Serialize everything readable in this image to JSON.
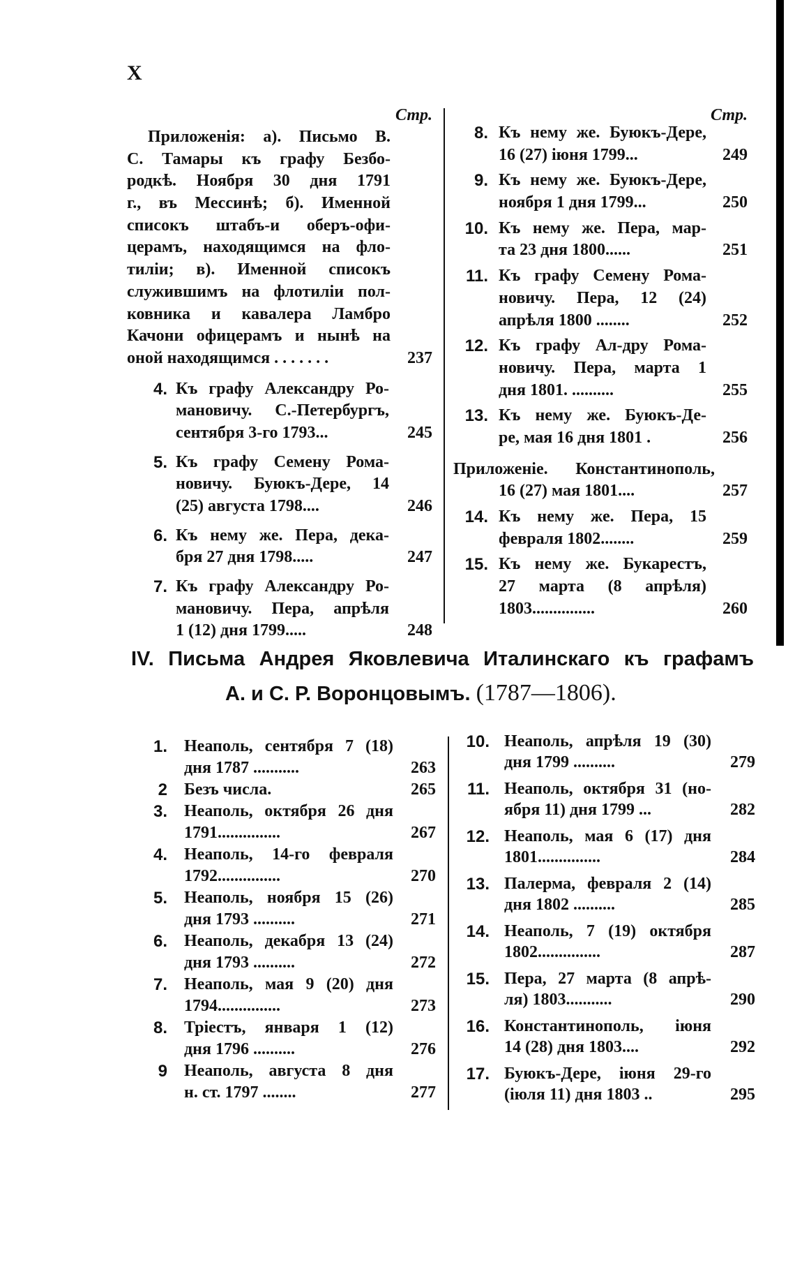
{
  "page_number": "X",
  "page_label": "Стр.",
  "top_left": {
    "appendix": {
      "lines": [
        "Приложенія: а). Письмо В.",
        "С. Тамары къ графу Безбо-",
        "родкѣ. Ноября 30 дня 1791",
        "г., въ Мессинѣ; б). Именной",
        "списокъ штабъ-и оберъ-офи-",
        "церамъ, находящимся на фло-",
        "тиліи; в). Именной списокъ",
        "служившимъ на флотиліи пол-",
        "ковника и кавалера Ламбро",
        "Качони офицерамъ и нынѣ на",
        "оной находящимся . . . . . . ."
      ],
      "page": "237"
    },
    "entries": [
      {
        "num": "4.",
        "lines": [
          "Къ графу Александру Ро-",
          "мановичу. С.-Петербургъ,",
          "сентября 3-го 1793..."
        ],
        "page": "245"
      },
      {
        "num": "5.",
        "lines": [
          "Къ графу Семену Рома-",
          "новичу. Буюкъ-Дере, 14",
          "(25) августа 1798...."
        ],
        "page": "246"
      },
      {
        "num": "6.",
        "lines": [
          "Къ нему же. Пера, дека-",
          "бря 27 дня 1798....."
        ],
        "page": "247"
      },
      {
        "num": "7.",
        "lines": [
          "Къ графу Александру Ро-",
          "мановичу. Пера, апрѣля",
          "1 (12) дня 1799....."
        ],
        "page": "248"
      }
    ]
  },
  "top_right": {
    "entries": [
      {
        "num": "8.",
        "lines": [
          "Къ нему же. Буюкъ-Дере,",
          "16 (27) іюня 1799..."
        ],
        "page": "249"
      },
      {
        "num": "9.",
        "lines": [
          "Къ нему же. Буюкъ-Дере,",
          "ноября 1 дня 1799..."
        ],
        "page": "250"
      },
      {
        "num": "10.",
        "lines": [
          "Къ нему же. Пера, мар-",
          "та 23 дня 1800......"
        ],
        "page": "251"
      },
      {
        "num": "11.",
        "lines": [
          "Къ графу Семену Рома-",
          "новичу. Пера, 12 (24)",
          "апрѣля 1800 ........"
        ],
        "page": "252"
      },
      {
        "num": "12.",
        "lines": [
          "Къ графу Ал-дру Рома-",
          "новичу. Пера, марта 1",
          "дня 1801. .........."
        ],
        "page": "255"
      },
      {
        "num": "13.",
        "lines": [
          "Къ нему же. Буюкъ-Де-",
          "ре, мая 16 дня 1801 ."
        ],
        "page": "256"
      },
      {
        "num": "",
        "appendix": true,
        "lines": [
          "Приложеніе. Константинополь,",
          "16 (27) мая 1801...."
        ],
        "page": "257"
      },
      {
        "num": "14.",
        "lines": [
          "Къ нему же. Пера, 15",
          "февраля 1802........"
        ],
        "page": "259"
      },
      {
        "num": "15.",
        "lines": [
          "Къ нему же. Букарестъ,",
          "27 марта (8 апрѣля)",
          "1803..............."
        ],
        "page": "260"
      }
    ]
  },
  "section_heading": {
    "line1": "IV. Письма Андрея Яковлевича Италинскаго къ графамъ",
    "line2": "А. и С. Р. Воронцовымъ.",
    "years": "(1787—1806)."
  },
  "bottom_left": {
    "entries": [
      {
        "num": "1.",
        "lines": [
          "Неаполь, сентября 7 (18)",
          "дня 1787 ..........."
        ],
        "page": "263"
      },
      {
        "num": "2",
        "lines": [
          "Безъ числа."
        ],
        "page": "265"
      },
      {
        "num": "3.",
        "lines": [
          "Неаполь, октября 26 дня",
          "1791..............."
        ],
        "page": "267"
      },
      {
        "num": "4.",
        "lines": [
          "Неаполь, 14-го февраля",
          "1792..............."
        ],
        "page": "270"
      },
      {
        "num": "5.",
        "lines": [
          "Неаполь, ноября 15 (26)",
          "дня 1793 .........."
        ],
        "page": "271"
      },
      {
        "num": "6.",
        "lines": [
          "Неаполь, декабря 13 (24)",
          "дня 1793 .........."
        ],
        "page": "272"
      },
      {
        "num": "7.",
        "lines": [
          "Неаполь, мая 9 (20) дня",
          "1794..............."
        ],
        "page": "273"
      },
      {
        "num": "8.",
        "lines": [
          "Тріестъ, января 1 (12)",
          "дня 1796 .........."
        ],
        "page": "276"
      },
      {
        "num": "9",
        "lines": [
          "Неаполь, августа 8 дня",
          "н. ст. 1797 ........"
        ],
        "page": "277"
      }
    ]
  },
  "bottom_right": {
    "entries": [
      {
        "num": "10.",
        "lines": [
          "Неаполь, апрѣля 19 (30)",
          "дня 1799 .........."
        ],
        "page": "279"
      },
      {
        "num": "11.",
        "lines": [
          "Неаполь, октября 31 (но-",
          "ября 11) дня 1799 ..."
        ],
        "page": "282"
      },
      {
        "num": "12.",
        "lines": [
          "Неаполь, мая 6 (17) дня",
          "1801..............."
        ],
        "page": "284"
      },
      {
        "num": "13.",
        "lines": [
          "Палерма, февраля 2 (14)",
          "дня 1802 .........."
        ],
        "page": "285"
      },
      {
        "num": "14.",
        "lines": [
          "Неаполь, 7 (19) октября",
          "1802..............."
        ],
        "page": "287"
      },
      {
        "num": "15.",
        "lines": [
          "Пера, 27 марта (8 апрѣ-",
          "ля) 1803..........."
        ],
        "page": "290"
      },
      {
        "num": "16.",
        "lines": [
          "Константинополь, іюня",
          "14 (28) дня 1803...."
        ],
        "page": "292"
      },
      {
        "num": "17.",
        "lines": [
          "Буюкъ-Дере, іюня 29-го",
          "(іюля 11) дня 1803 .."
        ],
        "page": "295"
      }
    ]
  }
}
